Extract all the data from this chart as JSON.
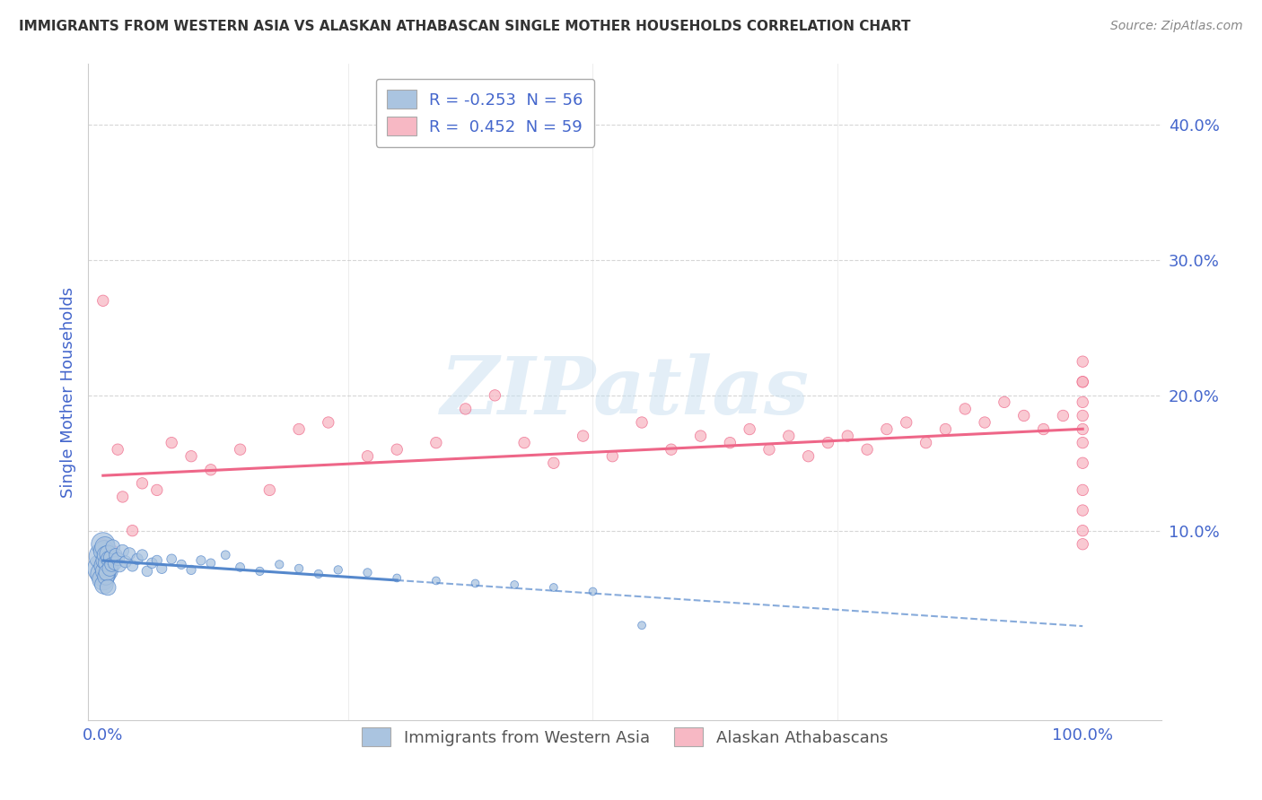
{
  "title": "IMMIGRANTS FROM WESTERN ASIA VS ALASKAN ATHABASCAN SINGLE MOTHER HOUSEHOLDS CORRELATION CHART",
  "source": "Source: ZipAtlas.com",
  "ylabel": "Single Mother Households",
  "legend_label1": "Immigrants from Western Asia",
  "legend_label2": "Alaskan Athabascans",
  "r1": -0.253,
  "n1": 56,
  "r2": 0.452,
  "n2": 59,
  "color1": "#aac4e0",
  "color2": "#f7b8c4",
  "line_color1": "#5588cc",
  "line_color2": "#ee6688",
  "background_color": "#ffffff",
  "grid_color": "#cccccc",
  "text_color_blue": "#4466cc",
  "title_color": "#333333",
  "source_color": "#888888",
  "ylabel_color": "#4466cc",
  "xlim": [
    -0.015,
    1.08
  ],
  "ylim": [
    -0.04,
    0.445
  ],
  "blue_x": [
    0.0,
    0.0,
    0.0,
    0.0,
    0.0,
    0.001,
    0.001,
    0.001,
    0.002,
    0.002,
    0.002,
    0.003,
    0.003,
    0.004,
    0.004,
    0.005,
    0.005,
    0.006,
    0.007,
    0.008,
    0.009,
    0.01,
    0.012,
    0.013,
    0.015,
    0.017,
    0.02,
    0.023,
    0.027,
    0.03,
    0.035,
    0.04,
    0.045,
    0.05,
    0.055,
    0.06,
    0.07,
    0.08,
    0.09,
    0.1,
    0.11,
    0.125,
    0.14,
    0.16,
    0.18,
    0.2,
    0.22,
    0.24,
    0.27,
    0.3,
    0.34,
    0.38,
    0.42,
    0.46,
    0.5,
    0.55
  ],
  "blue_y": [
    0.072,
    0.081,
    0.068,
    0.09,
    0.064,
    0.085,
    0.074,
    0.06,
    0.088,
    0.07,
    0.078,
    0.082,
    0.066,
    0.076,
    0.069,
    0.083,
    0.058,
    0.079,
    0.072,
    0.08,
    0.075,
    0.088,
    0.076,
    0.082,
    0.079,
    0.074,
    0.085,
    0.077,
    0.083,
    0.074,
    0.079,
    0.082,
    0.07,
    0.076,
    0.078,
    0.072,
    0.079,
    0.075,
    0.071,
    0.078,
    0.076,
    0.082,
    0.073,
    0.07,
    0.075,
    0.072,
    0.068,
    0.071,
    0.069,
    0.065,
    0.063,
    0.061,
    0.06,
    0.058,
    0.055,
    0.03
  ],
  "blue_s": [
    600,
    500,
    400,
    350,
    300,
    280,
    250,
    220,
    260,
    230,
    210,
    200,
    180,
    190,
    170,
    180,
    160,
    160,
    150,
    140,
    130,
    130,
    120,
    110,
    110,
    100,
    100,
    90,
    90,
    80,
    80,
    75,
    70,
    70,
    65,
    65,
    60,
    55,
    55,
    55,
    50,
    50,
    50,
    45,
    45,
    45,
    45,
    45,
    45,
    40,
    40,
    40,
    40,
    40,
    40,
    40
  ],
  "pink_x": [
    0.0,
    0.0,
    0.0,
    0.005,
    0.01,
    0.015,
    0.02,
    0.03,
    0.04,
    0.055,
    0.07,
    0.09,
    0.11,
    0.14,
    0.17,
    0.2,
    0.23,
    0.27,
    0.3,
    0.34,
    0.37,
    0.4,
    0.43,
    0.46,
    0.49,
    0.52,
    0.55,
    0.58,
    0.61,
    0.64,
    0.66,
    0.68,
    0.7,
    0.72,
    0.74,
    0.76,
    0.78,
    0.8,
    0.82,
    0.84,
    0.86,
    0.88,
    0.9,
    0.92,
    0.94,
    0.96,
    0.98,
    1.0,
    1.0,
    1.0,
    1.0,
    1.0,
    1.0,
    1.0,
    1.0,
    1.0,
    1.0,
    1.0,
    1.0
  ],
  "pink_y": [
    0.068,
    0.09,
    0.27,
    0.075,
    0.085,
    0.16,
    0.125,
    0.1,
    0.135,
    0.13,
    0.165,
    0.155,
    0.145,
    0.16,
    0.13,
    0.175,
    0.18,
    0.155,
    0.16,
    0.165,
    0.19,
    0.2,
    0.165,
    0.15,
    0.17,
    0.155,
    0.18,
    0.16,
    0.17,
    0.165,
    0.175,
    0.16,
    0.17,
    0.155,
    0.165,
    0.17,
    0.16,
    0.175,
    0.18,
    0.165,
    0.175,
    0.19,
    0.18,
    0.195,
    0.185,
    0.175,
    0.185,
    0.09,
    0.1,
    0.115,
    0.13,
    0.15,
    0.165,
    0.175,
    0.185,
    0.195,
    0.21,
    0.225,
    0.21
  ],
  "pink_s": [
    80,
    80,
    80,
    80,
    80,
    80,
    80,
    80,
    80,
    80,
    80,
    80,
    80,
    80,
    80,
    80,
    80,
    80,
    80,
    80,
    80,
    80,
    80,
    80,
    80,
    80,
    80,
    80,
    80,
    80,
    80,
    80,
    80,
    80,
    80,
    80,
    80,
    80,
    80,
    80,
    80,
    80,
    80,
    80,
    80,
    80,
    80,
    80,
    80,
    80,
    80,
    80,
    80,
    80,
    80,
    80,
    80,
    80,
    80
  ],
  "watermark_text": "ZIPatlas",
  "watermark_color": "#c8dff0",
  "watermark_alpha": 0.5
}
